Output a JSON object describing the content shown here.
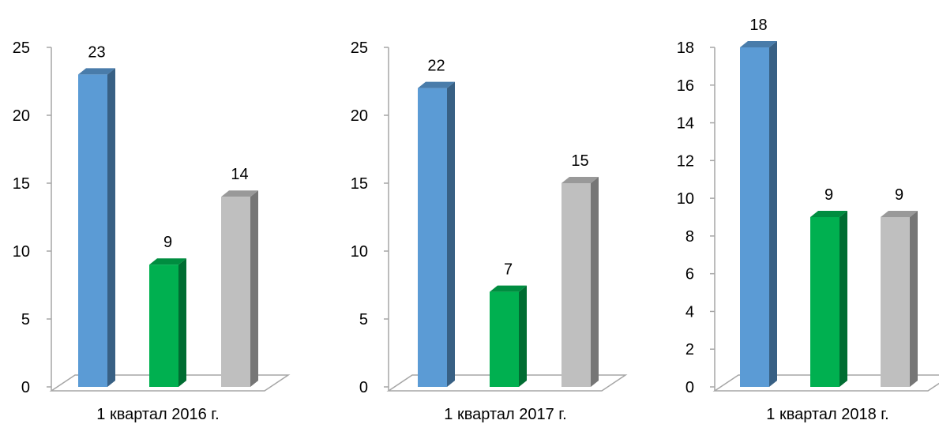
{
  "colors": {
    "blue": "#5b9bd5",
    "green": "#00b050",
    "gray": "#bfbfbf",
    "axis": "#a6a6a6"
  },
  "chart_data": [
    {
      "type": "bar",
      "categories": [
        "1 квартал 2016 г."
      ],
      "series": [
        {
          "values": [
            23
          ],
          "color": "#5b9bd5"
        },
        {
          "values": [
            9
          ],
          "color": "#00b050"
        },
        {
          "values": [
            14
          ],
          "color": "#bfbfbf"
        }
      ],
      "ylim": [
        0,
        25
      ],
      "yticks": [
        0,
        5,
        10,
        15,
        20,
        25
      ],
      "data_labels": [
        "23",
        "9",
        "14"
      ],
      "grid": false,
      "legend": "none",
      "style": "3d-column"
    },
    {
      "type": "bar",
      "categories": [
        "1 квартал 2017 г."
      ],
      "series": [
        {
          "values": [
            22
          ],
          "color": "#5b9bd5"
        },
        {
          "values": [
            7
          ],
          "color": "#00b050"
        },
        {
          "values": [
            15
          ],
          "color": "#bfbfbf"
        }
      ],
      "ylim": [
        0,
        25
      ],
      "yticks": [
        0,
        5,
        10,
        15,
        20,
        25
      ],
      "data_labels": [
        "22",
        "7",
        "15"
      ],
      "grid": false,
      "legend": "none",
      "style": "3d-column"
    },
    {
      "type": "bar",
      "categories": [
        "1 квартал 2018 г."
      ],
      "series": [
        {
          "values": [
            18
          ],
          "color": "#5b9bd5"
        },
        {
          "values": [
            9
          ],
          "color": "#00b050"
        },
        {
          "values": [
            9
          ],
          "color": "#bfbfbf"
        }
      ],
      "ylim": [
        0,
        18
      ],
      "yticks": [
        0,
        2,
        4,
        6,
        8,
        10,
        12,
        14,
        16,
        18
      ],
      "data_labels": [
        "18",
        "9",
        "9"
      ],
      "grid": false,
      "legend": "none",
      "style": "3d-column"
    }
  ]
}
